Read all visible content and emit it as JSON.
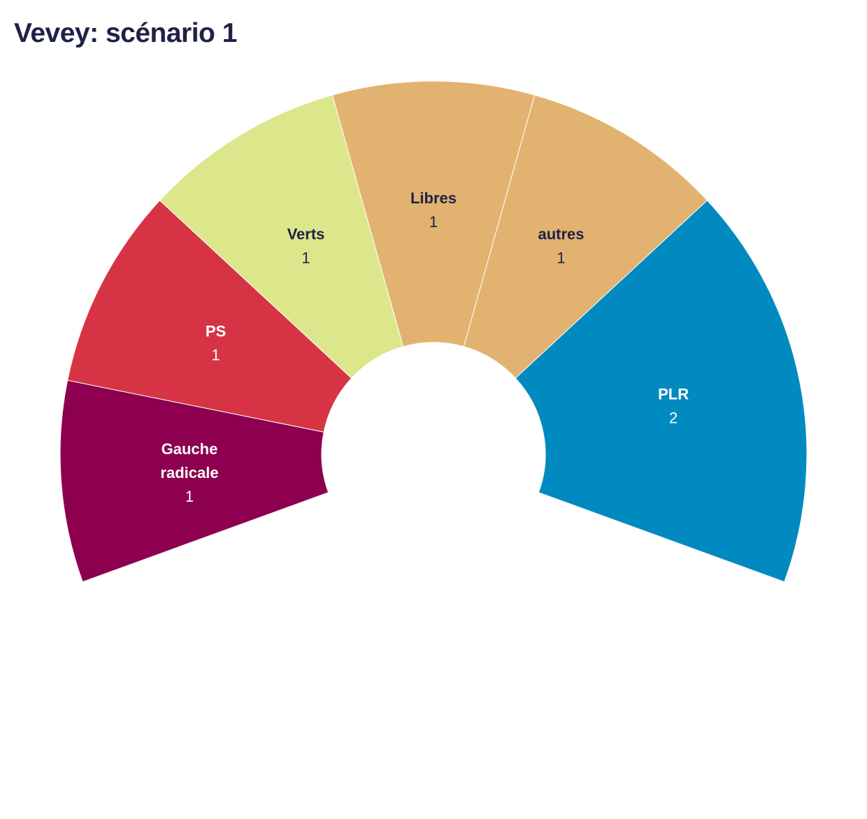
{
  "page": {
    "title": "Vevey: scénario 1"
  },
  "chart_data": {
    "type": "pie",
    "subtype": "parliament-half-donut",
    "title": "Vevey: scénario 1",
    "categories": [
      "Gauche radicale",
      "PS",
      "Verts",
      "Libres",
      "autres",
      "PLR"
    ],
    "values": [
      1,
      1,
      1,
      1,
      1,
      2
    ],
    "total_seats": 7,
    "colors": [
      "#8c004f",
      "#d63444",
      "#dce78b",
      "#e2b270",
      "#e2b270",
      "#008ac0"
    ],
    "label_text_color": [
      "light",
      "light",
      "dark",
      "dark",
      "dark",
      "light"
    ],
    "legend": "none"
  }
}
